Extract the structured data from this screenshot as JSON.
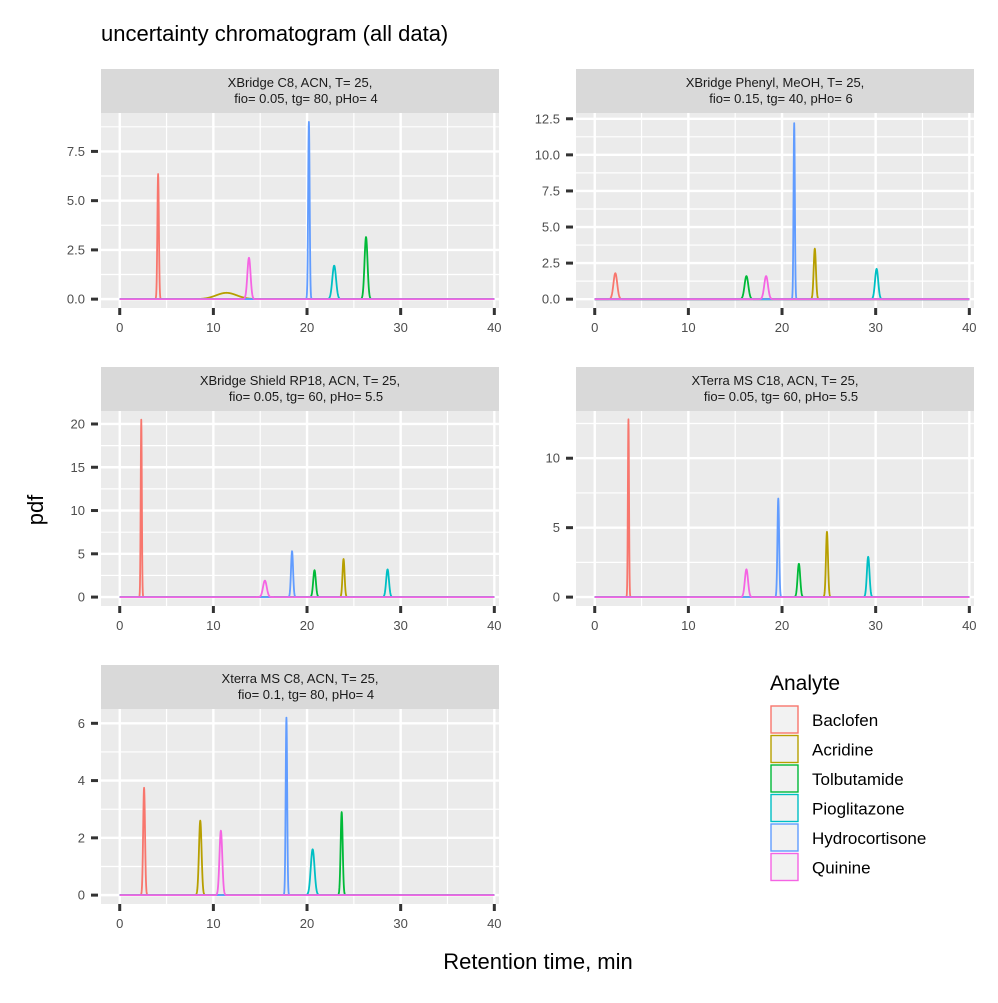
{
  "title": "uncertainty chromatogram (all data)",
  "xlabel": "Retention time, min",
  "ylabel": "pdf",
  "legend": {
    "title": "Analyte",
    "entries": [
      {
        "name": "Baclofen",
        "color": "#F8766D"
      },
      {
        "name": "Acridine",
        "color": "#B79F00"
      },
      {
        "name": "Tolbutamide",
        "color": "#00BA38"
      },
      {
        "name": "Pioglitazone",
        "color": "#00BFC4"
      },
      {
        "name": "Hydrocortisone",
        "color": "#619CFF"
      },
      {
        "name": "Quinine",
        "color": "#F564E3"
      }
    ]
  },
  "chart_data": [
    {
      "type": "line",
      "strip": [
        "XBridge C8, ACN, T= 25,",
        "fio= 0.05, tg= 80, pHo= 4"
      ],
      "xlim": [
        -2,
        40.5
      ],
      "xticks": [
        0,
        10,
        20,
        30,
        40
      ],
      "ylim": [
        -0.45,
        9.45
      ],
      "yticks": [
        0,
        2.5,
        5,
        7.5
      ],
      "ytick_labels": [
        "0.0",
        "2.5",
        "5.0",
        "7.5"
      ],
      "series": [
        {
          "name": "Baclofen",
          "center": 4.1,
          "height": 6.35,
          "width": 0.08
        },
        {
          "name": "Acridine",
          "center": 11.4,
          "height": 0.32,
          "width": 1.1
        },
        {
          "name": "Tolbutamide",
          "center": 26.3,
          "height": 3.15,
          "width": 0.16
        },
        {
          "name": "Pioglitazone",
          "center": 22.9,
          "height": 1.7,
          "width": 0.2
        },
        {
          "name": "Hydrocortisone",
          "center": 20.2,
          "height": 9.0,
          "width": 0.08
        },
        {
          "name": "Quinine",
          "center": 13.8,
          "height": 2.1,
          "width": 0.17
        }
      ]
    },
    {
      "type": "line",
      "strip": [
        "XBridge Phenyl, MeOH, T= 25,",
        "fio= 0.15, tg= 40, pHo= 6"
      ],
      "xlim": [
        -2,
        40.5
      ],
      "xticks": [
        0,
        10,
        20,
        30,
        40
      ],
      "ylim": [
        -0.61,
        12.9
      ],
      "yticks": [
        0,
        2.5,
        5,
        7.5,
        10,
        12.5
      ],
      "ytick_labels": [
        "0.0",
        "2.5",
        "5.0",
        "7.5",
        "10.0",
        "12.5"
      ],
      "series": [
        {
          "name": "Baclofen",
          "center": 2.2,
          "height": 1.8,
          "width": 0.2
        },
        {
          "name": "Acridine",
          "center": 23.5,
          "height": 3.5,
          "width": 0.12
        },
        {
          "name": "Tolbutamide",
          "center": 16.2,
          "height": 1.6,
          "width": 0.2
        },
        {
          "name": "Pioglitazone",
          "center": 30.1,
          "height": 2.1,
          "width": 0.17
        },
        {
          "name": "Hydrocortisone",
          "center": 21.3,
          "height": 12.2,
          "width": 0.07
        },
        {
          "name": "Quinine",
          "center": 18.3,
          "height": 1.6,
          "width": 0.2
        }
      ]
    },
    {
      "type": "line",
      "strip": [
        "XBridge Shield RP18, ACN, T= 25,",
        "fio= 0.05, tg= 60, pHo= 5.5"
      ],
      "xlim": [
        -2,
        40.5
      ],
      "xticks": [
        0,
        10,
        20,
        30,
        40
      ],
      "ylim": [
        -1.03,
        21.5
      ],
      "yticks": [
        0,
        5,
        10,
        15,
        20
      ],
      "ytick_labels": [
        "0",
        "5",
        "10",
        "15",
        "20"
      ],
      "series": [
        {
          "name": "Baclofen",
          "center": 2.3,
          "height": 20.5,
          "width": 0.06
        },
        {
          "name": "Acridine",
          "center": 23.9,
          "height": 4.4,
          "width": 0.11
        },
        {
          "name": "Tolbutamide",
          "center": 20.8,
          "height": 3.1,
          "width": 0.14
        },
        {
          "name": "Pioglitazone",
          "center": 28.6,
          "height": 3.2,
          "width": 0.15
        },
        {
          "name": "Hydrocortisone",
          "center": 18.4,
          "height": 5.3,
          "width": 0.11
        },
        {
          "name": "Quinine",
          "center": 15.5,
          "height": 1.9,
          "width": 0.2
        }
      ]
    },
    {
      "type": "line",
      "strip": [
        "XTerra MS C18, ACN, T= 25,",
        "fio= 0.05, tg= 60, pHo= 5.5"
      ],
      "xlim": [
        -2,
        40.5
      ],
      "xticks": [
        0,
        10,
        20,
        30,
        40
      ],
      "ylim": [
        -0.64,
        13.4
      ],
      "yticks": [
        0,
        5,
        10
      ],
      "ytick_labels": [
        "0",
        "5",
        "10"
      ],
      "series": [
        {
          "name": "Baclofen",
          "center": 3.6,
          "height": 12.8,
          "width": 0.06
        },
        {
          "name": "Acridine",
          "center": 24.8,
          "height": 4.7,
          "width": 0.11
        },
        {
          "name": "Tolbutamide",
          "center": 21.8,
          "height": 2.4,
          "width": 0.14
        },
        {
          "name": "Pioglitazone",
          "center": 29.2,
          "height": 2.9,
          "width": 0.14
        },
        {
          "name": "Hydrocortisone",
          "center": 19.6,
          "height": 7.1,
          "width": 0.09
        },
        {
          "name": "Quinine",
          "center": 16.2,
          "height": 2.0,
          "width": 0.17
        }
      ]
    },
    {
      "type": "line",
      "strip": [
        "Xterra MS C8, ACN, T= 25,",
        "fio= 0.1, tg= 80, pHo= 4"
      ],
      "xlim": [
        -2,
        40.5
      ],
      "xticks": [
        0,
        10,
        20,
        30,
        40
      ],
      "ylim": [
        -0.31,
        6.5
      ],
      "yticks": [
        0,
        2,
        4,
        6
      ],
      "ytick_labels": [
        "0",
        "2",
        "4",
        "6"
      ],
      "series": [
        {
          "name": "Baclofen",
          "center": 2.6,
          "height": 3.75,
          "width": 0.1
        },
        {
          "name": "Acridine",
          "center": 8.6,
          "height": 2.6,
          "width": 0.14
        },
        {
          "name": "Tolbutamide",
          "center": 23.7,
          "height": 2.9,
          "width": 0.11
        },
        {
          "name": "Pioglitazone",
          "center": 20.6,
          "height": 1.6,
          "width": 0.2
        },
        {
          "name": "Hydrocortisone",
          "center": 17.8,
          "height": 6.2,
          "width": 0.08
        },
        {
          "name": "Quinine",
          "center": 10.8,
          "height": 2.25,
          "width": 0.15
        }
      ]
    }
  ]
}
